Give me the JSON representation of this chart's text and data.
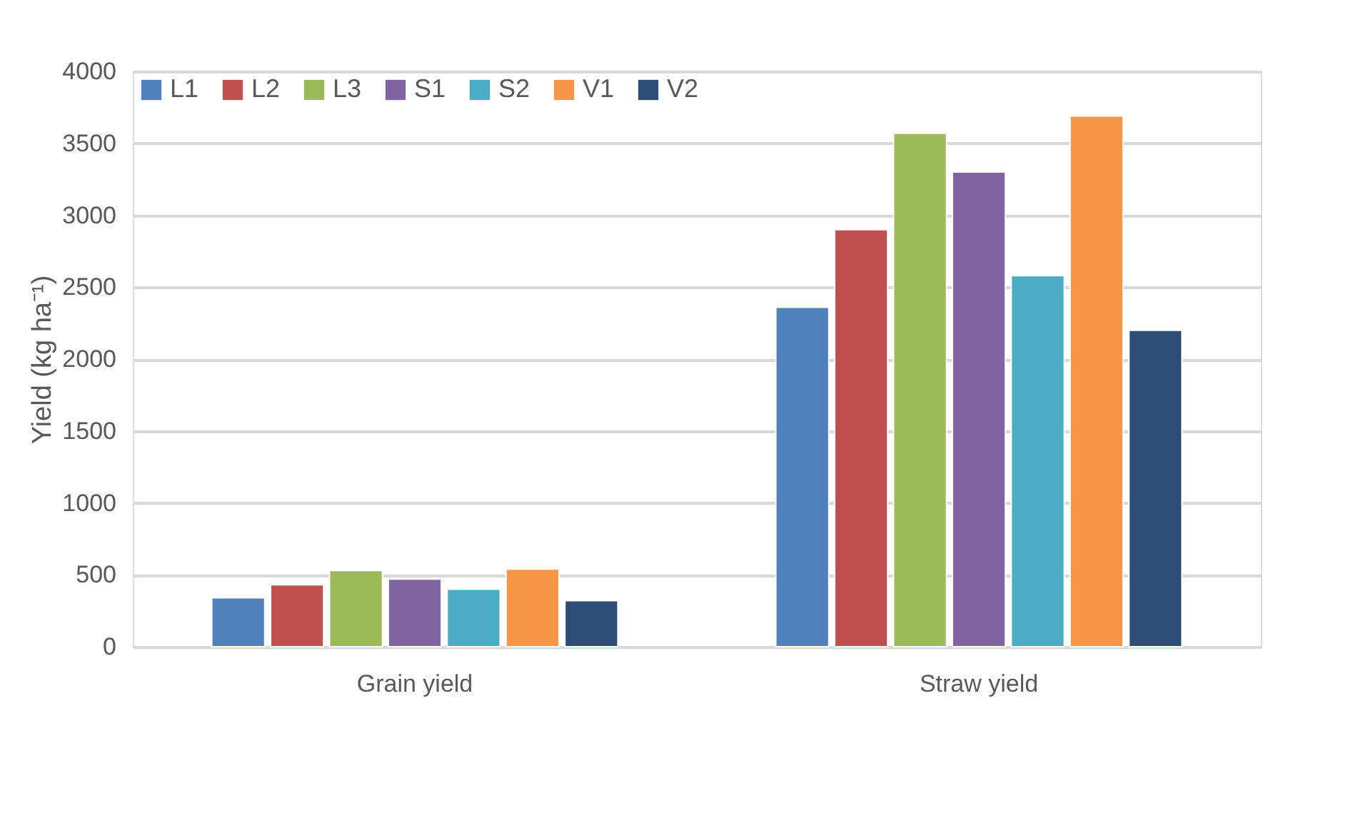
{
  "chart_data": {
    "type": "bar",
    "ylabel": "Yield (kg ha⁻¹)",
    "categories": [
      "Grain yield",
      "Straw yield"
    ],
    "ylim": [
      0,
      4000
    ],
    "yticks": [
      0,
      500,
      1000,
      1500,
      2000,
      2500,
      3000,
      3500,
      4000
    ],
    "grid": "y",
    "legend": "top left",
    "series": [
      {
        "name": "L1",
        "color": "#4f81bd",
        "values": [
          340,
          2360
        ]
      },
      {
        "name": "L2",
        "color": "#c0504d",
        "values": [
          430,
          2900
        ]
      },
      {
        "name": "L3",
        "color": "#9bbb59",
        "values": [
          530,
          3570
        ]
      },
      {
        "name": "S1",
        "color": "#8064a2",
        "values": [
          470,
          3300
        ]
      },
      {
        "name": "S2",
        "color": "#4bacc6",
        "values": [
          400,
          2580
        ]
      },
      {
        "name": "V1",
        "color": "#f79646",
        "values": [
          540,
          3690
        ]
      },
      {
        "name": "V2",
        "color": "#2c4d75",
        "values": [
          320,
          2200
        ]
      }
    ]
  }
}
